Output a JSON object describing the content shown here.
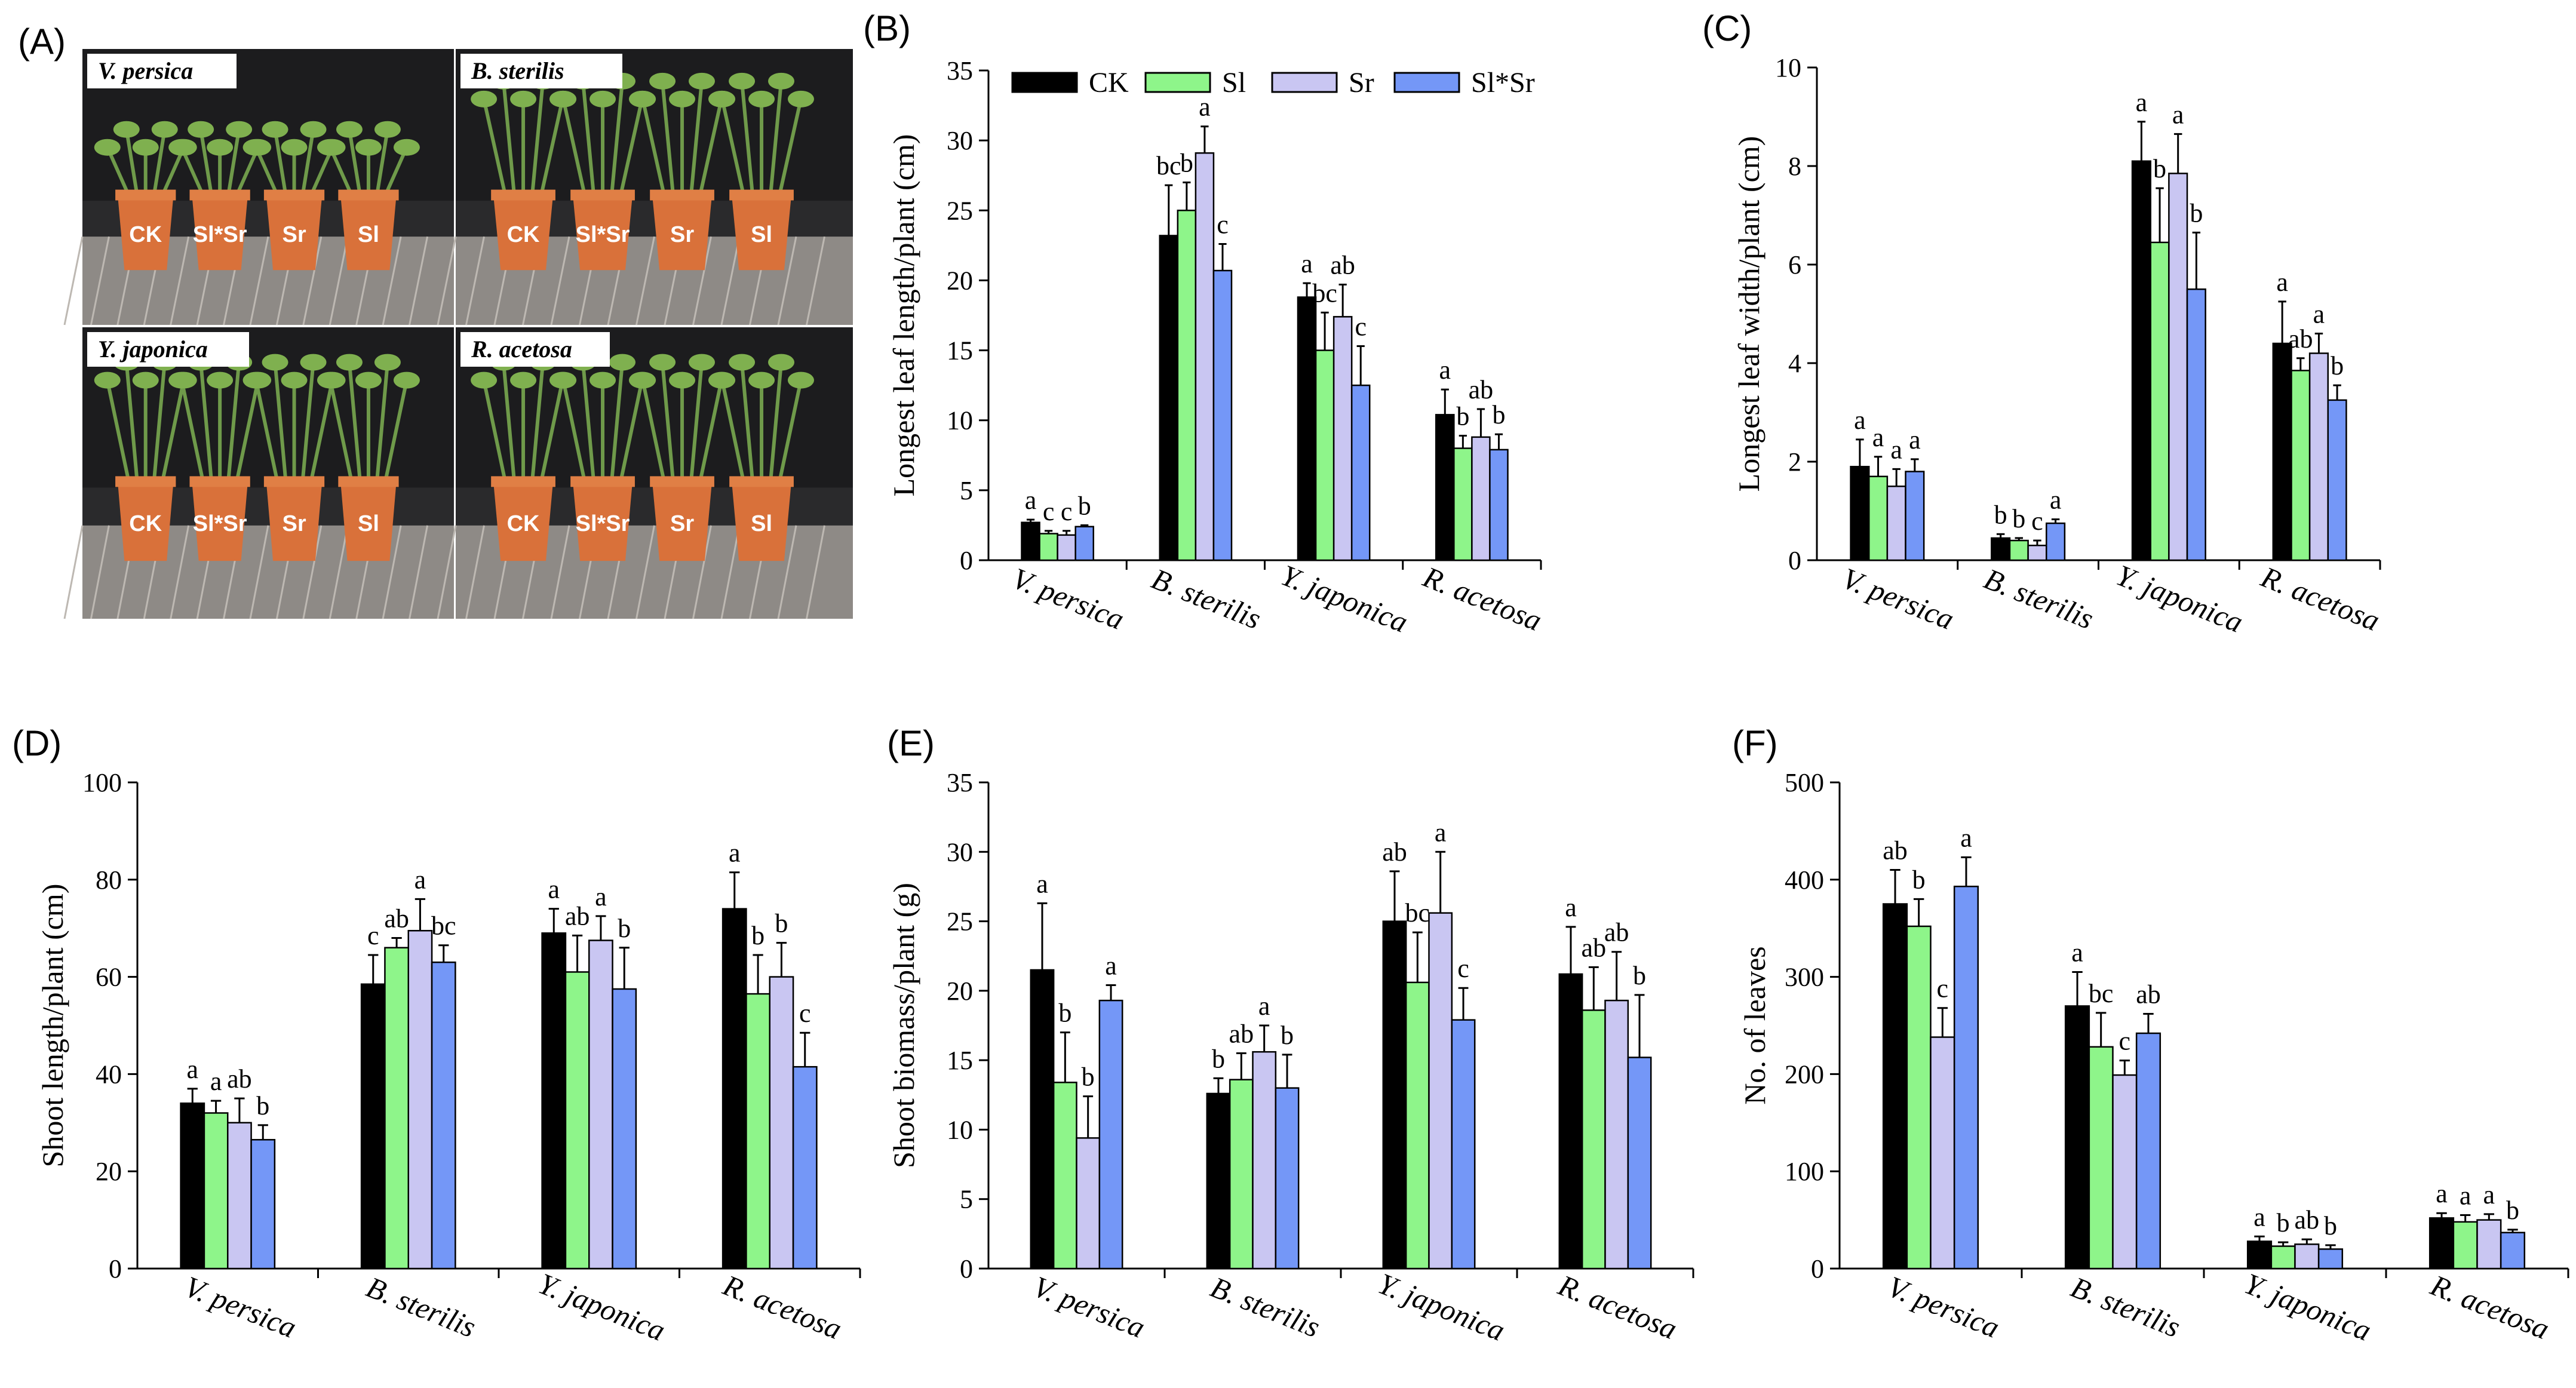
{
  "colors": {
    "CK": "#000000",
    "Sl": "#8ef58a",
    "Sr": "#c9c6f2",
    "SlSr": "#7497f7"
  },
  "photo_panel": {
    "letter": "(A)",
    "quadrants": [
      {
        "species": "V. persica",
        "pots": [
          "CK",
          "Sl*Sr",
          "Sr",
          "Sl"
        ]
      },
      {
        "species": "B. sterilis",
        "pots": [
          "CK",
          "Sl*Sr",
          "Sr",
          "Sl"
        ]
      },
      {
        "species": "Y. japonica",
        "pots": [
          "CK",
          "Sl*Sr",
          "Sr",
          "Sl"
        ]
      },
      {
        "species": "R. acetosa",
        "pots": [
          "CK",
          "Sl*Sr",
          "Sr",
          "Sl"
        ]
      }
    ]
  },
  "legend": [
    "CK",
    "Sl",
    "Sr",
    "Sl*Sr"
  ],
  "chart_data": [
    {
      "panel": "(B)",
      "type": "bar",
      "ylabel": "Longest leaf length/plant (cm)",
      "ylim": [
        0,
        35
      ],
      "yticks": [
        0,
        5,
        10,
        15,
        20,
        25,
        30,
        35
      ],
      "categories": [
        "V. persica",
        "B. sterilis",
        "Y. japonica",
        "R. acetosa"
      ],
      "series": [
        {
          "name": "CK",
          "values": [
            2.7,
            23.2,
            18.8,
            10.4
          ],
          "errors": [
            0.2,
            3.6,
            1.0,
            1.8
          ],
          "letters": [
            "a",
            "bc",
            "a",
            "a"
          ]
        },
        {
          "name": "Sl",
          "values": [
            1.9,
            25.0,
            15.0,
            8.0
          ],
          "errors": [
            0.2,
            2.0,
            2.7,
            0.9
          ],
          "letters": [
            "c",
            "b",
            "bc",
            "b"
          ]
        },
        {
          "name": "Sr",
          "values": [
            1.8,
            29.1,
            17.4,
            8.8
          ],
          "errors": [
            0.3,
            1.9,
            2.3,
            2.0
          ],
          "letters": [
            "c",
            "a",
            "ab",
            "ab"
          ]
        },
        {
          "name": "Sl*Sr",
          "values": [
            2.4,
            20.7,
            12.5,
            7.9
          ],
          "errors": [
            0.1,
            1.9,
            2.8,
            1.1
          ],
          "letters": [
            "b",
            "c",
            "c",
            "b"
          ]
        }
      ]
    },
    {
      "panel": "(C)",
      "type": "bar",
      "ylabel": "Longest leaf width/plant (cm)",
      "ylim": [
        0,
        10
      ],
      "yticks": [
        0,
        2,
        4,
        6,
        8,
        10
      ],
      "categories": [
        "V. persica",
        "B. sterilis",
        "Y. japonica",
        "R. acetosa"
      ],
      "series": [
        {
          "name": "CK",
          "values": [
            1.9,
            0.45,
            8.1,
            4.4
          ],
          "errors": [
            0.55,
            0.08,
            0.8,
            0.85
          ],
          "letters": [
            "a",
            "b",
            "a",
            "a"
          ]
        },
        {
          "name": "Sl",
          "values": [
            1.7,
            0.4,
            6.45,
            3.85
          ],
          "errors": [
            0.4,
            0.05,
            1.1,
            0.25
          ],
          "letters": [
            "a",
            "b",
            "b",
            "ab"
          ]
        },
        {
          "name": "Sr",
          "values": [
            1.5,
            0.3,
            7.85,
            4.2
          ],
          "errors": [
            0.35,
            0.1,
            0.8,
            0.4
          ],
          "letters": [
            "a",
            "c",
            "a",
            "a"
          ]
        },
        {
          "name": "Sl*Sr",
          "values": [
            1.8,
            0.75,
            5.5,
            3.25
          ],
          "errors": [
            0.25,
            0.08,
            1.15,
            0.3
          ],
          "letters": [
            "a",
            "a",
            "b",
            "b"
          ]
        }
      ]
    },
    {
      "panel": "(D)",
      "type": "bar",
      "ylabel": "Shoot length/plant (cm)",
      "ylim": [
        0,
        100
      ],
      "yticks": [
        0,
        20,
        40,
        60,
        80,
        100
      ],
      "categories": [
        "V. persica",
        "B. sterilis",
        "Y. japonica",
        "R. acetosa"
      ],
      "series": [
        {
          "name": "CK",
          "values": [
            34,
            58.5,
            69,
            74
          ],
          "errors": [
            3,
            6,
            5,
            7.5
          ],
          "letters": [
            "a",
            "c",
            "a",
            "a"
          ]
        },
        {
          "name": "Sl",
          "values": [
            32,
            66,
            61,
            56.5
          ],
          "errors": [
            2.5,
            2,
            7.5,
            8
          ],
          "letters": [
            "a",
            "ab",
            "ab",
            "b"
          ]
        },
        {
          "name": "Sr",
          "values": [
            30,
            69.5,
            67.5,
            60
          ],
          "errors": [
            5,
            6.5,
            5,
            7
          ],
          "letters": [
            "ab",
            "a",
            "a",
            "b"
          ]
        },
        {
          "name": "Sl*Sr",
          "values": [
            26.5,
            63,
            57.5,
            41.5
          ],
          "errors": [
            3,
            3.5,
            8.5,
            7
          ],
          "letters": [
            "b",
            "bc",
            "b",
            "c"
          ]
        }
      ]
    },
    {
      "panel": "(E)",
      "type": "bar",
      "ylabel": "Shoot biomass/plant (g)",
      "ylim": [
        0,
        35
      ],
      "yticks": [
        0,
        5,
        10,
        15,
        20,
        25,
        30,
        35
      ],
      "categories": [
        "V. persica",
        "B. sterilis",
        "Y. japonica",
        "R. acetosa"
      ],
      "series": [
        {
          "name": "CK",
          "values": [
            21.5,
            12.6,
            25.0,
            21.2
          ],
          "errors": [
            4.8,
            1.1,
            3.6,
            3.4
          ],
          "letters": [
            "a",
            "b",
            "ab",
            "a"
          ]
        },
        {
          "name": "Sl",
          "values": [
            13.4,
            13.6,
            20.6,
            18.6
          ],
          "errors": [
            3.6,
            1.9,
            3.6,
            3.1
          ],
          "letters": [
            "b",
            "ab",
            "bc",
            "ab"
          ]
        },
        {
          "name": "Sr",
          "values": [
            9.4,
            15.6,
            25.6,
            19.3
          ],
          "errors": [
            3.0,
            1.9,
            4.4,
            3.5
          ],
          "letters": [
            "b",
            "a",
            "a",
            "ab"
          ]
        },
        {
          "name": "Sl*Sr",
          "values": [
            19.3,
            13.0,
            17.9,
            15.2
          ],
          "errors": [
            1.1,
            2.4,
            2.3,
            4.5
          ],
          "letters": [
            "a",
            "b",
            "c",
            "b"
          ]
        }
      ]
    },
    {
      "panel": "(F)",
      "type": "bar",
      "ylabel": "No. of leaves",
      "ylim": [
        0,
        500
      ],
      "yticks": [
        0,
        100,
        200,
        300,
        400,
        500
      ],
      "categories": [
        "V. persica",
        "B. sterilis",
        "Y. japonica",
        "R. acetosa"
      ],
      "series": [
        {
          "name": "CK",
          "values": [
            375,
            270,
            28,
            52
          ],
          "errors": [
            35,
            35,
            5,
            5
          ],
          "letters": [
            "ab",
            "a",
            "a",
            "a"
          ]
        },
        {
          "name": "Sl",
          "values": [
            352,
            228,
            23,
            48
          ],
          "errors": [
            28,
            35,
            4,
            7
          ],
          "letters": [
            "b",
            "bc",
            "b",
            "a"
          ]
        },
        {
          "name": "Sr",
          "values": [
            238,
            199,
            25,
            50
          ],
          "errors": [
            30,
            15,
            5,
            6
          ],
          "letters": [
            "c",
            "c",
            "ab",
            "a"
          ]
        },
        {
          "name": "Sl*Sr",
          "values": [
            393,
            242,
            20,
            37
          ],
          "errors": [
            30,
            20,
            4,
            3
          ],
          "letters": [
            "a",
            "ab",
            "b",
            "b"
          ]
        }
      ]
    }
  ]
}
